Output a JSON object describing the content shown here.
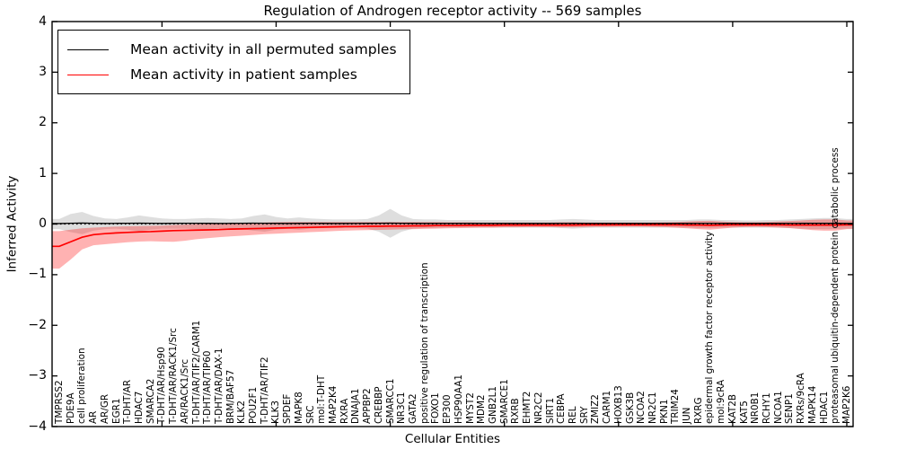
{
  "chart_data": {
    "type": "line",
    "title": "Regulation of Androgen receptor activity -- 569 samples",
    "xlabel": "Cellular Entities",
    "ylabel": "Inferred Activity",
    "ylim": [
      -4,
      4
    ],
    "yticks": [
      4,
      3,
      2,
      1,
      0,
      -1,
      -2,
      -3,
      -4
    ],
    "grid": false,
    "legend_position": "upper left",
    "zero_line": {
      "style": "dotted",
      "color": "#000000",
      "y": 0
    },
    "categories": [
      "TMPRSS2",
      "PDE9A",
      "cell proliferation",
      "AR",
      "AR/GR",
      "EGR1",
      "T-DHT/AR",
      "HDAC7",
      "SMARCA2",
      "T-DHT/AR/Hsp90",
      "T-DHT/AR/RACK1/Src",
      "AR/RACK1/Src",
      "T-DHT/AR/TIF2/CARM1",
      "T-DHT/AR/TIP60",
      "T-DHT/AR/DAX-1",
      "BRM/BAF57",
      "KLK2",
      "POU2F1",
      "T-DHT/AR/TIF2",
      "KLK3",
      "SPDEF",
      "MAPK8",
      "SRC",
      "mol:T-DHT",
      "MAP2K4",
      "RXRA",
      "DNAJA1",
      "APPBP2",
      "CREBBP",
      "SMARCC1",
      "NR3C1",
      "GATA2",
      "positive regulation of transcription",
      "FOXO1",
      "EP300",
      "HSP90AA1",
      "MYST2",
      "MDM2",
      "GNB2L1",
      "SMARCE1",
      "RXRB",
      "EHMT2",
      "NR2C2",
      "SIRT1",
      "CEBPA",
      "REL",
      "SRY",
      "ZMIZ2",
      "CARM1",
      "HOXB13",
      "GSK3B",
      "NCOA2",
      "NR2C1",
      "PKN1",
      "TRIM24",
      "JUN",
      "RXRG",
      "epidermal growth factor receptor activity",
      "mol:9cRA",
      "KAT2B",
      "KAT5",
      "NR0B1",
      "RCHY1",
      "NCOA1",
      "SENP1",
      "RXRs/9cRA",
      "MAPK14",
      "HDAC1",
      "proteasomal ubiquitin-dependent protein catabolic process",
      "MAP2K6"
    ],
    "series": [
      {
        "name": "Mean activity in all permuted samples",
        "color": "#000000",
        "band_color": "#000000",
        "band_opacity": 0.13,
        "values": [
          0.01,
          0.015,
          0.02,
          0.015,
          0.012,
          0.014,
          0.016,
          0.018,
          0.015,
          0.012,
          0.014,
          0.016,
          0.015,
          0.014,
          0.012,
          0.014,
          0.016,
          0.018,
          0.016,
          0.014,
          0.012,
          0.014,
          0.015,
          0.014,
          0.012,
          0.012,
          0.013,
          0.014,
          0.016,
          0.018,
          0.016,
          0.014,
          0.012,
          0.012,
          0.012,
          0.012,
          0.012,
          0.012,
          0.012,
          0.012,
          0.012,
          0.012,
          0.012,
          0.012,
          0.013,
          0.014,
          0.013,
          0.012,
          0.012,
          0.012,
          0.012,
          0.012,
          0.012,
          0.012,
          0.012,
          0.012,
          0.013,
          0.013,
          0.012,
          0.012,
          0.012,
          0.012,
          0.012,
          0.012,
          0.013,
          0.014,
          0.015,
          0.015,
          0.014,
          0.012
        ],
        "band_upper": [
          0.1,
          0.2,
          0.24,
          0.16,
          0.11,
          0.1,
          0.13,
          0.17,
          0.14,
          0.11,
          0.1,
          0.1,
          0.11,
          0.12,
          0.11,
          0.1,
          0.11,
          0.16,
          0.19,
          0.14,
          0.11,
          0.13,
          0.11,
          0.1,
          0.09,
          0.09,
          0.09,
          0.1,
          0.17,
          0.3,
          0.17,
          0.1,
          0.09,
          0.09,
          0.08,
          0.08,
          0.08,
          0.08,
          0.08,
          0.08,
          0.08,
          0.08,
          0.08,
          0.08,
          0.09,
          0.1,
          0.09,
          0.08,
          0.08,
          0.08,
          0.08,
          0.08,
          0.08,
          0.08,
          0.08,
          0.08,
          0.09,
          0.09,
          0.08,
          0.08,
          0.07,
          0.07,
          0.08,
          0.08,
          0.09,
          0.1,
          0.11,
          0.12,
          0.12,
          0.1
        ],
        "band_lower": [
          -0.1,
          -0.16,
          -0.2,
          -0.13,
          -0.1,
          -0.09,
          -0.11,
          -0.14,
          -0.11,
          -0.09,
          -0.09,
          -0.09,
          -0.1,
          -0.1,
          -0.09,
          -0.09,
          -0.1,
          -0.13,
          -0.15,
          -0.11,
          -0.09,
          -0.11,
          -0.09,
          -0.08,
          -0.08,
          -0.08,
          -0.08,
          -0.09,
          -0.15,
          -0.27,
          -0.15,
          -0.09,
          -0.08,
          -0.08,
          -0.07,
          -0.07,
          -0.07,
          -0.07,
          -0.07,
          -0.07,
          -0.07,
          -0.07,
          -0.07,
          -0.07,
          -0.08,
          -0.09,
          -0.08,
          -0.07,
          -0.07,
          -0.07,
          -0.07,
          -0.07,
          -0.07,
          -0.07,
          -0.07,
          -0.07,
          -0.08,
          -0.08,
          -0.07,
          -0.07,
          -0.07,
          -0.07,
          -0.07,
          -0.07,
          -0.08,
          -0.09,
          -0.1,
          -0.1,
          -0.1,
          -0.09
        ]
      },
      {
        "name": "Mean activity in patient samples",
        "color": "#ff0000",
        "band_color": "#ff0000",
        "band_opacity": 0.3,
        "values": [
          -0.44,
          -0.35,
          -0.26,
          -0.21,
          -0.19,
          -0.175,
          -0.165,
          -0.155,
          -0.15,
          -0.14,
          -0.13,
          -0.125,
          -0.12,
          -0.115,
          -0.11,
          -0.1,
          -0.095,
          -0.09,
          -0.085,
          -0.08,
          -0.075,
          -0.07,
          -0.065,
          -0.06,
          -0.055,
          -0.05,
          -0.05,
          -0.045,
          -0.045,
          -0.04,
          -0.04,
          -0.035,
          -0.035,
          -0.03,
          -0.03,
          -0.03,
          -0.025,
          -0.025,
          -0.025,
          -0.02,
          -0.02,
          -0.02,
          -0.02,
          -0.02,
          -0.02,
          -0.02,
          -0.015,
          -0.015,
          -0.015,
          -0.015,
          -0.015,
          -0.015,
          -0.015,
          -0.015,
          -0.015,
          -0.02,
          -0.02,
          -0.025,
          -0.02,
          -0.015,
          -0.015,
          -0.015,
          -0.015,
          -0.015,
          -0.02,
          -0.02,
          -0.02,
          -0.02,
          -0.02,
          -0.015
        ],
        "band_upper": [
          -0.14,
          -0.11,
          -0.085,
          -0.07,
          -0.06,
          -0.05,
          -0.045,
          -0.04,
          -0.035,
          -0.03,
          -0.02,
          -0.01,
          0.0,
          0.005,
          0.01,
          0.015,
          0.02,
          0.025,
          0.03,
          0.035,
          0.04,
          0.04,
          0.04,
          0.04,
          0.04,
          0.04,
          0.04,
          0.04,
          0.04,
          0.04,
          0.04,
          0.04,
          0.04,
          0.04,
          0.035,
          0.035,
          0.035,
          0.03,
          0.03,
          0.03,
          0.03,
          0.03,
          0.03,
          0.03,
          0.035,
          0.035,
          0.03,
          0.03,
          0.03,
          0.03,
          0.03,
          0.03,
          0.03,
          0.035,
          0.04,
          0.05,
          0.06,
          0.065,
          0.05,
          0.04,
          0.035,
          0.035,
          0.04,
          0.05,
          0.06,
          0.07,
          0.085,
          0.09,
          0.09,
          0.07
        ],
        "band_lower": [
          -0.88,
          -0.7,
          -0.5,
          -0.42,
          -0.4,
          -0.38,
          -0.36,
          -0.345,
          -0.34,
          -0.345,
          -0.35,
          -0.33,
          -0.3,
          -0.28,
          -0.26,
          -0.245,
          -0.23,
          -0.215,
          -0.2,
          -0.19,
          -0.18,
          -0.17,
          -0.16,
          -0.15,
          -0.14,
          -0.13,
          -0.125,
          -0.12,
          -0.115,
          -0.11,
          -0.105,
          -0.1,
          -0.095,
          -0.09,
          -0.085,
          -0.08,
          -0.075,
          -0.07,
          -0.07,
          -0.065,
          -0.065,
          -0.06,
          -0.06,
          -0.06,
          -0.065,
          -0.065,
          -0.06,
          -0.055,
          -0.055,
          -0.05,
          -0.05,
          -0.05,
          -0.055,
          -0.06,
          -0.07,
          -0.085,
          -0.1,
          -0.11,
          -0.09,
          -0.07,
          -0.06,
          -0.055,
          -0.06,
          -0.07,
          -0.08,
          -0.1,
          -0.12,
          -0.13,
          -0.13,
          -0.1
        ]
      }
    ]
  }
}
